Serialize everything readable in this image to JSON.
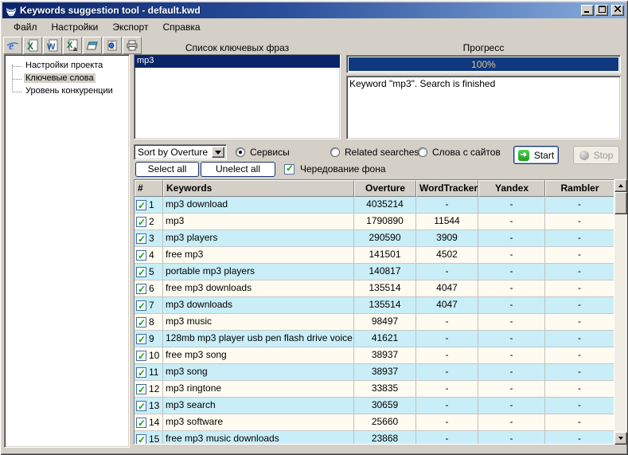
{
  "window": {
    "title": "Keywords suggestion tool - default.kwd",
    "controls": {
      "minimize": "_",
      "maximize": "□",
      "close": "x"
    }
  },
  "menu": {
    "items": [
      {
        "label": "Файл"
      },
      {
        "label": "Настройки"
      },
      {
        "label": "Экспорт"
      },
      {
        "label": "Справка"
      }
    ]
  },
  "toolbar": {
    "icons": [
      "ie-export-icon",
      "excel-export-icon",
      "word-export-icon",
      "excel-a-export-icon",
      "book-icon",
      "document-globe-icon",
      "printer-icon"
    ]
  },
  "sidebar": {
    "items": [
      {
        "label": "Настройки проекта",
        "selected": false
      },
      {
        "label": "Ключевые слова",
        "selected": true
      },
      {
        "label": "Уровень конкуренции",
        "selected": false
      }
    ]
  },
  "phrases": {
    "label": "Список ключевых фраз",
    "items": [
      {
        "text": "mp3",
        "selected": true
      }
    ]
  },
  "progress": {
    "label": "Прогресс",
    "percent": "100%",
    "log": "Keyword \"mp3\". Search is finished"
  },
  "controls": {
    "sort_dropdown": {
      "value": "Sort by Overture"
    },
    "radios": [
      {
        "label": "Сервисы",
        "selected": true
      },
      {
        "label": "Related searches",
        "selected": false
      },
      {
        "label": "Слова с сайтов",
        "selected": false
      }
    ],
    "select_all_label": "Select all",
    "unselect_all_label": "Unelect all",
    "alternate_bg": {
      "label": "Чередование фона",
      "checked": true
    },
    "start_label": "Start",
    "stop_label": "Stop",
    "start_disabled": false,
    "stop_disabled": true
  },
  "table": {
    "columns": [
      "#",
      "Keywords",
      "Overture",
      "WordTracker",
      "Yandex",
      "Rambler"
    ],
    "rows": [
      {
        "checked": true,
        "num": "1",
        "keyword": "mp3 download",
        "overture": "4035214",
        "wordtracker": "-",
        "yandex": "-",
        "rambler": "-"
      },
      {
        "checked": true,
        "num": "2",
        "keyword": "mp3",
        "overture": "1790890",
        "wordtracker": "11544",
        "yandex": "-",
        "rambler": "-"
      },
      {
        "checked": true,
        "num": "3",
        "keyword": "mp3 players",
        "overture": "290590",
        "wordtracker": "3909",
        "yandex": "-",
        "rambler": "-"
      },
      {
        "checked": true,
        "num": "4",
        "keyword": "free mp3",
        "overture": "141501",
        "wordtracker": "4502",
        "yandex": "-",
        "rambler": "-"
      },
      {
        "checked": true,
        "num": "5",
        "keyword": "portable mp3 players",
        "overture": "140817",
        "wordtracker": "-",
        "yandex": "-",
        "rambler": "-"
      },
      {
        "checked": true,
        "num": "6",
        "keyword": "free mp3 downloads",
        "overture": "135514",
        "wordtracker": "4047",
        "yandex": "-",
        "rambler": "-"
      },
      {
        "checked": true,
        "num": "7",
        "keyword": "mp3 downloads",
        "overture": "135514",
        "wordtracker": "4047",
        "yandex": "-",
        "rambler": "-"
      },
      {
        "checked": true,
        "num": "8",
        "keyword": "mp3 music",
        "overture": "98497",
        "wordtracker": "-",
        "yandex": "-",
        "rambler": "-"
      },
      {
        "checked": true,
        "num": "9",
        "keyword": "128mb mp3 player usb pen flash drive voice",
        "overture": "41621",
        "wordtracker": "-",
        "yandex": "-",
        "rambler": "-"
      },
      {
        "checked": true,
        "num": "10",
        "keyword": "free mp3 song",
        "overture": "38937",
        "wordtracker": "-",
        "yandex": "-",
        "rambler": "-"
      },
      {
        "checked": true,
        "num": "11",
        "keyword": "mp3 song",
        "overture": "38937",
        "wordtracker": "-",
        "yandex": "-",
        "rambler": "-"
      },
      {
        "checked": true,
        "num": "12",
        "keyword": "mp3 ringtone",
        "overture": "33835",
        "wordtracker": "-",
        "yandex": "-",
        "rambler": "-"
      },
      {
        "checked": true,
        "num": "13",
        "keyword": "mp3 search",
        "overture": "30659",
        "wordtracker": "-",
        "yandex": "-",
        "rambler": "-"
      },
      {
        "checked": true,
        "num": "14",
        "keyword": "mp3 software",
        "overture": "25660",
        "wordtracker": "-",
        "yandex": "-",
        "rambler": "-"
      },
      {
        "checked": true,
        "num": "15",
        "keyword": "free mp3 music downloads",
        "overture": "23868",
        "wordtracker": "-",
        "yandex": "-",
        "rambler": "-"
      }
    ]
  },
  "colors": {
    "title_gradient_start": "#0a246a",
    "title_gradient_end": "#88aede",
    "window_bg": "#d4d0c8",
    "selection": "#0a246a",
    "progress_fill": "#10387e",
    "progress_text": "#d8c894",
    "row_odd": "#c9eef7",
    "row_even": "#fffbf0",
    "check_green": "#17a117"
  }
}
